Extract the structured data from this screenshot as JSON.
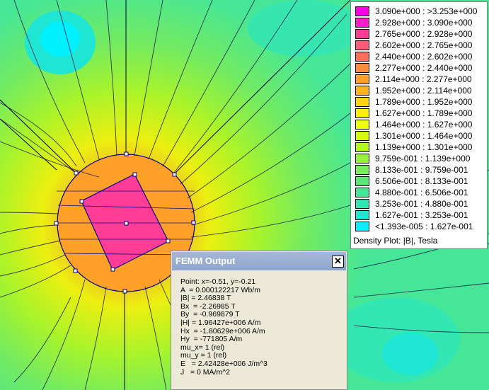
{
  "legend": {
    "rows": [
      {
        "label": "3.090e+000 : >3.253e+000",
        "color": "#ff00e6"
      },
      {
        "label": "2.928e+000 : 3.090e+000",
        "color": "#ff1ec8"
      },
      {
        "label": "2.765e+000 : 2.928e+000",
        "color": "#ff3c96"
      },
      {
        "label": "2.602e+000 : 2.765e+000",
        "color": "#ff5a78"
      },
      {
        "label": "2.440e+000 : 2.602e+000",
        "color": "#ff6e5a"
      },
      {
        "label": "2.277e+000 : 2.440e+000",
        "color": "#ff8c3c"
      },
      {
        "label": "2.114e+000 : 2.277e+000",
        "color": "#ffa028"
      },
      {
        "label": "1.952e+000 : 2.114e+000",
        "color": "#ffb41e"
      },
      {
        "label": "1.789e+000 : 1.952e+000",
        "color": "#ffd20a"
      },
      {
        "label": "1.627e+000 : 1.789e+000",
        "color": "#fff000"
      },
      {
        "label": "1.464e+000 : 1.627e+000",
        "color": "#f0ff00"
      },
      {
        "label": "1.301e+000 : 1.464e+000",
        "color": "#d2ff00"
      },
      {
        "label": "1.139e+000 : 1.301e+000",
        "color": "#b4f51e"
      },
      {
        "label": "9.759e-001 : 1.139e+000",
        "color": "#96f03c"
      },
      {
        "label": "8.133e-001 : 9.759e-001",
        "color": "#78eb5a"
      },
      {
        "label": "6.506e-001 : 8.133e-001",
        "color": "#5ae678"
      },
      {
        "label": "4.880e-001 : 6.506e-001",
        "color": "#46e696"
      },
      {
        "label": "3.253e-001 : 4.880e-001",
        "color": "#32e6b4"
      },
      {
        "label": "1.627e-001 : 3.253e-001",
        "color": "#1ee6d2"
      },
      {
        "label": "<1.393e-005 : 1.627e-001",
        "color": "#00f0ff"
      }
    ],
    "title": "Density Plot: |B|, Tesla"
  },
  "output_window": {
    "title": "FEMM Output",
    "close_label": "✕",
    "lines": [
      "Point: x=-0.51, y=-0.21",
      "A  = 0.000122217 Wb/m",
      "|B| = 2.46838 T",
      "Bx  = -2.26985 T",
      "By  = -0.969879 T",
      "|H| = 1.96427e+006 A/m",
      "Hx  = -1.80629e+006 A/m",
      "Hy  = -771805 A/m",
      "mu_x= 1 (rel)",
      "mu_y = 1 (rel)",
      "E   = 2.42428e+006 J/m^3",
      "J   = 0 MA/m^2"
    ]
  }
}
